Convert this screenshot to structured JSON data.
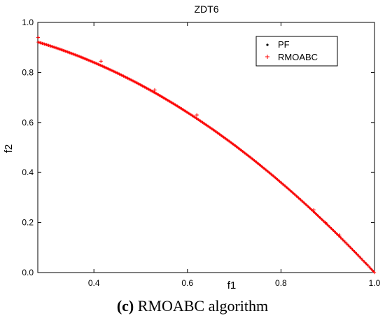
{
  "chart_data": {
    "type": "scatter",
    "title": "ZDT6",
    "xlabel": "f1",
    "ylabel": "f2",
    "xlim": [
      0.28,
      1.0
    ],
    "ylim": [
      0.0,
      1.0
    ],
    "xticks": [
      "0.4",
      "0.6",
      "0.8",
      "1.0"
    ],
    "xtick_values": [
      0.4,
      0.6,
      0.8,
      1.0
    ],
    "yticks": [
      "0.0",
      "0.2",
      "0.4",
      "0.6",
      "0.8",
      "1.0"
    ],
    "ytick_values": [
      0.0,
      0.2,
      0.4,
      0.6,
      0.8,
      1.0
    ],
    "legend_position": "top-right",
    "series": [
      {
        "name": "PF",
        "color": "#000000",
        "marker": "dot",
        "function": "f2 = 1 - f1^2",
        "x_range": [
          0.2807,
          1.0
        ]
      },
      {
        "name": "RMOABC",
        "color": "#ff0000",
        "marker": "plus",
        "function": "f2 = 1 - f1^2",
        "x_range": [
          0.2807,
          1.0
        ],
        "outliers": [
          {
            "x": 0.2807,
            "y": 0.94
          },
          {
            "x": 0.415,
            "y": 0.845
          },
          {
            "x": 0.53,
            "y": 0.73
          },
          {
            "x": 0.62,
            "y": 0.63
          },
          {
            "x": 0.87,
            "y": 0.25
          },
          {
            "x": 0.895,
            "y": 0.2
          },
          {
            "x": 0.925,
            "y": 0.15
          }
        ]
      }
    ]
  },
  "caption": {
    "label": "(c)",
    "text": " RMOABC algorithm"
  }
}
